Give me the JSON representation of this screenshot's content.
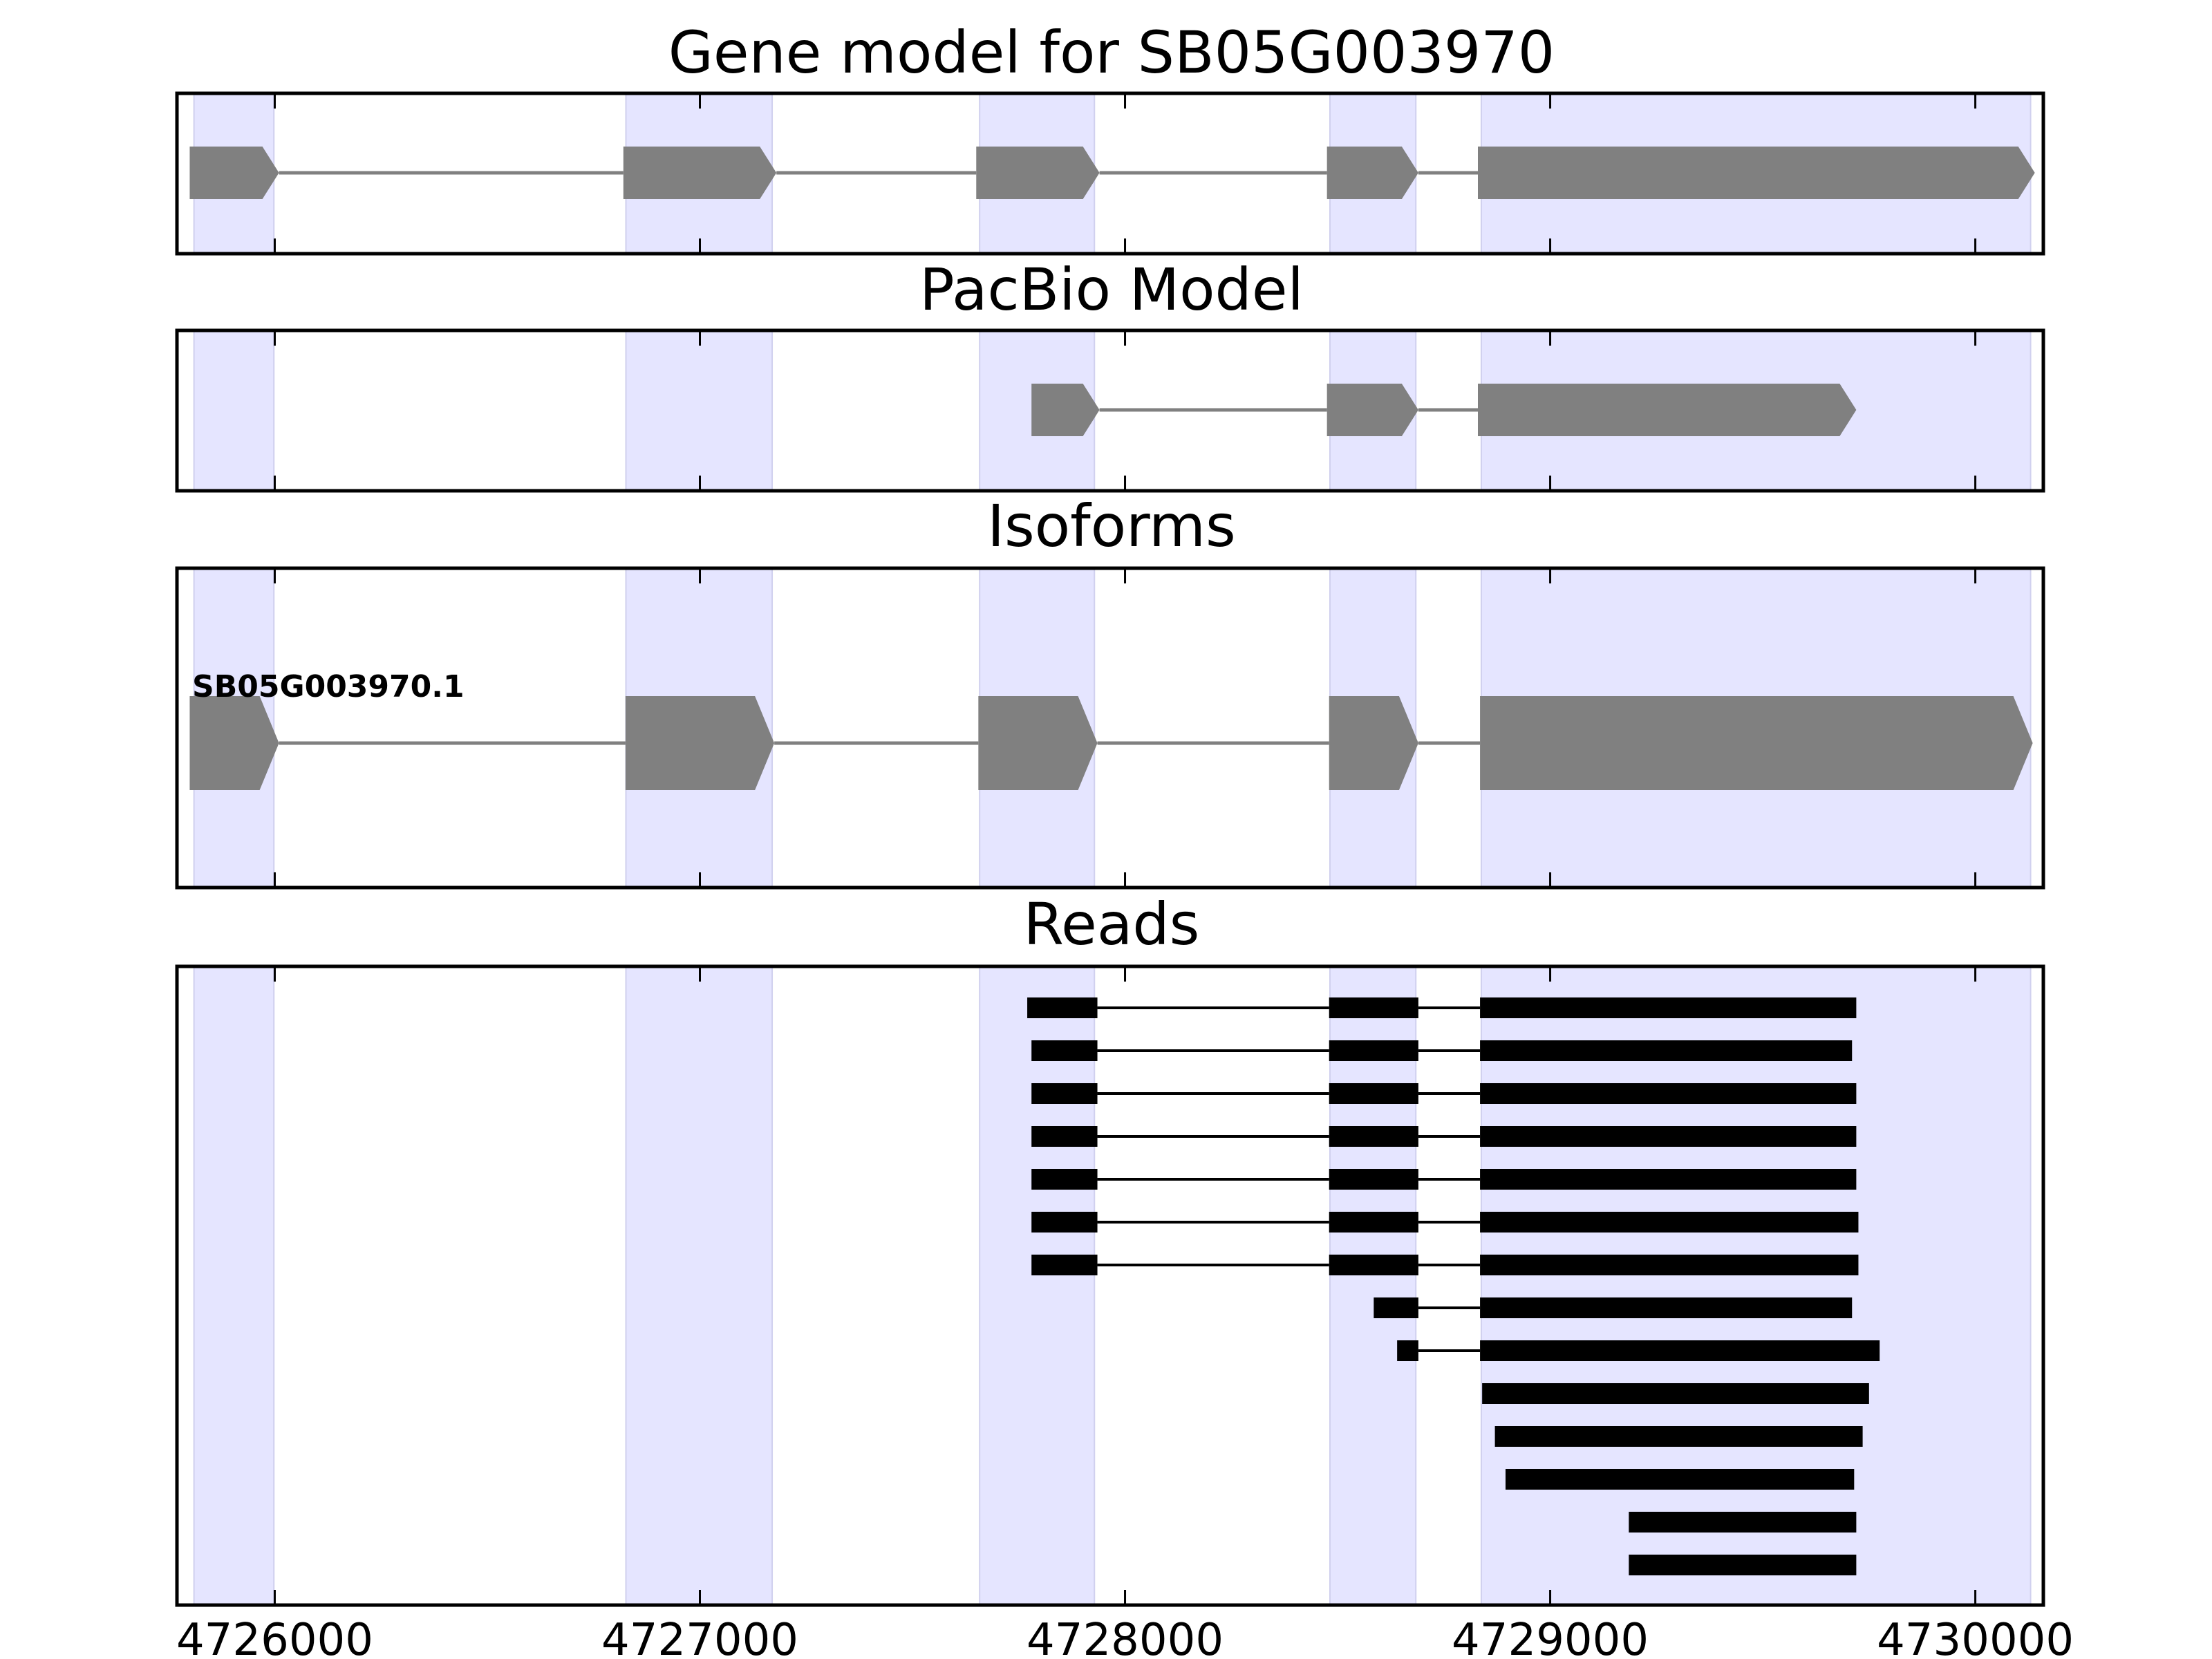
{
  "chart_data": {
    "type": "gene-structure",
    "x_axis": {
      "ticks": [
        4726000,
        4727000,
        4728000,
        4729000,
        4730000
      ],
      "tick_labels": [
        "4726000",
        "4727000",
        "4728000",
        "4729000",
        "4730000"
      ],
      "xlim": [
        4725770,
        4730160
      ]
    },
    "highlight_color": "#e5e5ff",
    "exon_regions": [
      [
        4725810,
        4725998
      ],
      [
        4726826,
        4727170
      ],
      [
        4727658,
        4727928
      ],
      [
        4728482,
        4728684
      ],
      [
        4728838,
        4730130
      ]
    ],
    "panels": [
      {
        "title": "Gene model for SB05G003970",
        "color": "#808080",
        "strand": "+",
        "features": [
          {
            "exons": [
              [
                4725800,
                4726010
              ],
              [
                4726820,
                4727180
              ],
              [
                4727650,
                4727940
              ],
              [
                4728475,
                4728690
              ],
              [
                4728830,
                4730140
              ]
            ]
          }
        ]
      },
      {
        "title": "PacBio Model",
        "color": "#808080",
        "strand": "+",
        "features": [
          {
            "exons": [
              [
                4727780,
                4727940
              ],
              [
                4728475,
                4728690
              ],
              [
                4728830,
                4729720
              ]
            ]
          }
        ]
      },
      {
        "title": "Isoforms",
        "color": "#808080",
        "strand": "+",
        "features": [
          {
            "label": "SB05G003970.1",
            "exons": [
              [
                4725800,
                4726010
              ],
              [
                4726825,
                4727175
              ],
              [
                4727655,
                4727935
              ],
              [
                4728480,
                4728690
              ],
              [
                4728835,
                4730135
              ]
            ]
          }
        ]
      },
      {
        "title": "Reads",
        "color": "#000000",
        "strand": "",
        "features": [
          {
            "exons": [
              [
                4727770,
                4727935
              ],
              [
                4728480,
                4728690
              ],
              [
                4728835,
                4729720
              ]
            ]
          },
          {
            "exons": [
              [
                4727780,
                4727935
              ],
              [
                4728480,
                4728690
              ],
              [
                4728835,
                4729710
              ]
            ]
          },
          {
            "exons": [
              [
                4727780,
                4727935
              ],
              [
                4728480,
                4728690
              ],
              [
                4728835,
                4729720
              ]
            ]
          },
          {
            "exons": [
              [
                4727780,
                4727935
              ],
              [
                4728480,
                4728690
              ],
              [
                4728835,
                4729720
              ]
            ]
          },
          {
            "exons": [
              [
                4727780,
                4727935
              ],
              [
                4728480,
                4728690
              ],
              [
                4728835,
                4729720
              ]
            ]
          },
          {
            "exons": [
              [
                4727780,
                4727935
              ],
              [
                4728480,
                4728690
              ],
              [
                4728835,
                4729725
              ]
            ]
          },
          {
            "exons": [
              [
                4727780,
                4727935
              ],
              [
                4728480,
                4728690
              ],
              [
                4728835,
                4729725
              ]
            ]
          },
          {
            "exons": [
              [
                4728585,
                4728690
              ],
              [
                4728835,
                4729710
              ]
            ]
          },
          {
            "exons": [
              [
                4728640,
                4728690
              ],
              [
                4728835,
                4729775
              ]
            ]
          },
          {
            "exons": [
              [
                4728840,
                4729750
              ]
            ]
          },
          {
            "exons": [
              [
                4728870,
                4729735
              ]
            ]
          },
          {
            "exons": [
              [
                4728895,
                4729715
              ]
            ]
          },
          {
            "exons": [
              [
                4729185,
                4729720
              ]
            ]
          },
          {
            "exons": [
              [
                4729185,
                4729720
              ]
            ]
          }
        ]
      }
    ]
  }
}
